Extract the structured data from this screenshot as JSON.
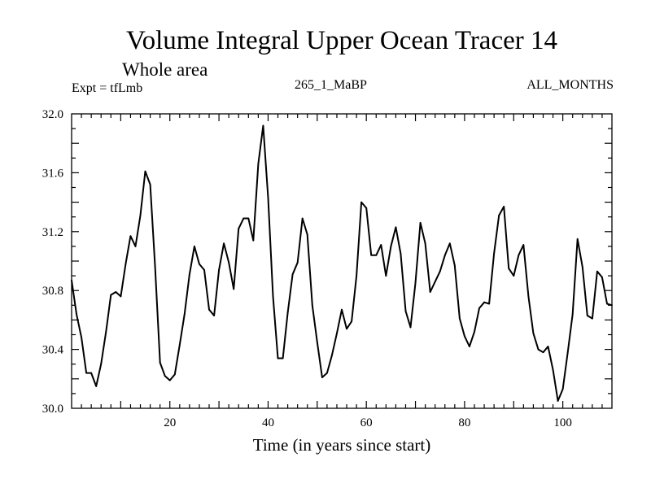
{
  "chart_data": {
    "type": "line",
    "title": "Volume Integral Upper Ocean Tracer 14",
    "subtitle": "Whole area",
    "experiment_label": "Expt = tfLmb",
    "run_label": "265_1_MaBP",
    "period_label": "ALL_MONTHS",
    "xlabel": "Time (in years since start)",
    "ylabel": "",
    "xlim": [
      0,
      110
    ],
    "ylim": [
      30.0,
      32.0
    ],
    "x_ticks": [
      20,
      40,
      60,
      80,
      100
    ],
    "x_tick_labels": [
      "20",
      "40",
      "60",
      "80",
      "100"
    ],
    "y_ticks": [
      30.0,
      30.4,
      30.8,
      31.2,
      31.6,
      32.0
    ],
    "y_tick_labels": [
      "30.0",
      "30.4",
      "30.8",
      "31.2",
      "31.6",
      "32.0"
    ],
    "series": [
      {
        "name": "Tracer 14",
        "color": "#000000",
        "x": [
          0,
          1,
          2,
          3,
          4,
          5,
          6,
          7,
          8,
          9,
          10,
          11,
          12,
          13,
          14,
          15,
          16,
          17,
          18,
          19,
          20,
          21,
          22,
          23,
          24,
          25,
          26,
          27,
          28,
          29,
          30,
          31,
          32,
          33,
          34,
          35,
          36,
          37,
          38,
          39,
          40,
          41,
          42,
          43,
          44,
          45,
          46,
          47,
          48,
          49,
          50,
          51,
          52,
          53,
          54,
          55,
          56,
          57,
          58,
          59,
          60,
          61,
          62,
          63,
          64,
          65,
          66,
          67,
          68,
          69,
          70,
          71,
          72,
          73,
          74,
          75,
          76,
          77,
          78,
          79,
          80,
          81,
          82,
          83,
          84,
          85,
          86,
          87,
          88,
          89,
          90,
          91,
          92,
          93,
          94,
          95,
          96,
          97,
          98,
          99,
          100,
          101,
          102,
          103,
          104,
          105,
          106,
          107,
          108,
          109,
          110
        ],
        "y": [
          30.87,
          30.64,
          30.48,
          30.24,
          30.24,
          30.15,
          30.3,
          30.52,
          30.77,
          30.79,
          30.76,
          30.98,
          31.17,
          31.1,
          31.31,
          31.61,
          31.52,
          30.96,
          30.31,
          30.22,
          30.19,
          30.23,
          30.43,
          30.64,
          30.91,
          31.1,
          30.98,
          30.94,
          30.67,
          30.63,
          30.94,
          31.12,
          30.99,
          30.81,
          31.22,
          31.29,
          31.29,
          31.14,
          31.66,
          31.92,
          31.43,
          30.76,
          30.34,
          30.34,
          30.65,
          30.91,
          30.99,
          31.29,
          31.18,
          30.7,
          30.45,
          30.21,
          30.24,
          30.36,
          30.51,
          30.67,
          30.54,
          30.59,
          30.9,
          31.4,
          31.36,
          31.04,
          31.04,
          31.11,
          30.9,
          31.1,
          31.23,
          31.05,
          30.66,
          30.55,
          30.85,
          31.26,
          31.12,
          30.79,
          30.86,
          30.93,
          31.04,
          31.12,
          30.97,
          30.61,
          30.49,
          30.42,
          30.52,
          30.68,
          30.72,
          30.71,
          31.05,
          31.31,
          31.37,
          30.95,
          30.9,
          31.04,
          31.11,
          30.76,
          30.51,
          30.4,
          30.38,
          30.42,
          30.26,
          30.05,
          30.13,
          30.38,
          30.64,
          31.15,
          30.96,
          30.63,
          30.61,
          30.93,
          30.89,
          30.71,
          30.7
        ]
      }
    ]
  }
}
